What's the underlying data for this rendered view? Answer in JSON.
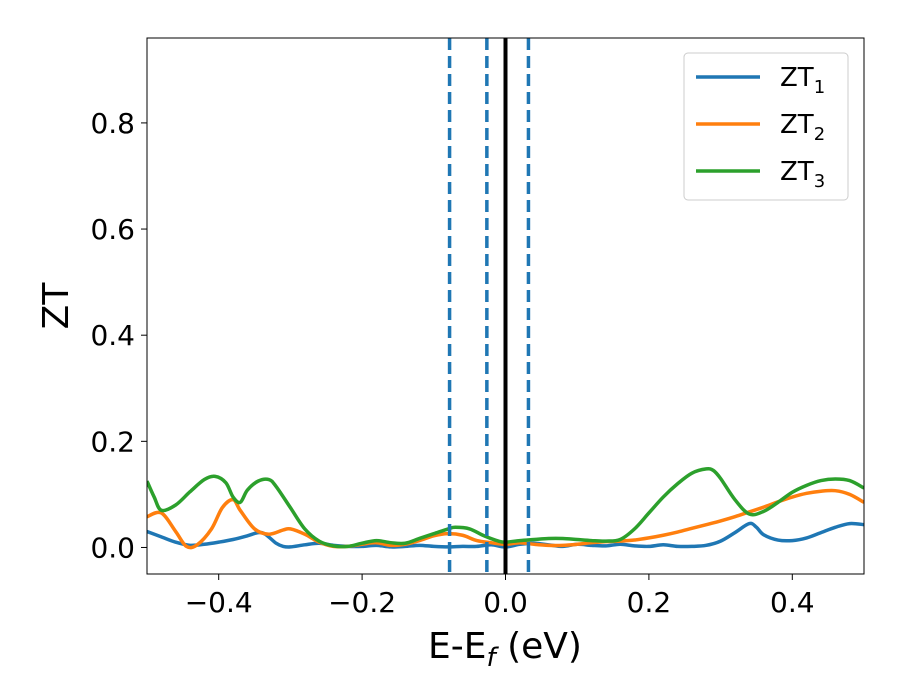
{
  "chart_data": {
    "type": "line",
    "xlabel": {
      "main": "E-E",
      "sub": "f",
      "unit": " (eV)"
    },
    "ylabel": "ZT",
    "xlim": [
      -0.5,
      0.5
    ],
    "ylim": [
      -0.05,
      0.96
    ],
    "x_ticks": [
      -0.4,
      -0.2,
      0.0,
      0.2,
      0.4
    ],
    "x_tick_labels": [
      "−0.4",
      "−0.2",
      "0.0",
      "0.2",
      "0.4"
    ],
    "y_ticks": [
      0.0,
      0.2,
      0.4,
      0.6,
      0.8
    ],
    "y_tick_labels": [
      "0.0",
      "0.2",
      "0.4",
      "0.6",
      "0.8"
    ],
    "grid": false,
    "legend_position": "top-right",
    "reference_lines": {
      "solid": {
        "x": 0.0,
        "color": "#000000"
      },
      "dashed": {
        "x": [
          -0.078,
          -0.026,
          0.032
        ],
        "color": "#1f77b4"
      }
    },
    "series": [
      {
        "name": "ZT",
        "name_sub": "1",
        "color": "#1f77b4",
        "points": [
          [
            -0.5,
            0.03
          ],
          [
            -0.48,
            0.02
          ],
          [
            -0.46,
            0.01
          ],
          [
            -0.44,
            0.004
          ],
          [
            -0.42,
            0.006
          ],
          [
            -0.4,
            0.01
          ],
          [
            -0.38,
            0.015
          ],
          [
            -0.36,
            0.022
          ],
          [
            -0.345,
            0.028
          ],
          [
            -0.335,
            0.025
          ],
          [
            -0.32,
            0.008
          ],
          [
            -0.31,
            0.002
          ],
          [
            -0.3,
            0.001
          ],
          [
            -0.28,
            0.005
          ],
          [
            -0.26,
            0.008
          ],
          [
            -0.24,
            0.004
          ],
          [
            -0.22,
            0.002
          ],
          [
            -0.2,
            0.002
          ],
          [
            -0.18,
            0.004
          ],
          [
            -0.16,
            0.001
          ],
          [
            -0.14,
            0.002
          ],
          [
            -0.12,
            0.004
          ],
          [
            -0.1,
            0.002
          ],
          [
            -0.08,
            0.001
          ],
          [
            -0.06,
            0.002
          ],
          [
            -0.04,
            0.002
          ],
          [
            -0.02,
            0.005
          ],
          [
            0.0,
            0.001
          ],
          [
            0.02,
            0.006
          ],
          [
            0.04,
            0.008
          ],
          [
            0.06,
            0.005
          ],
          [
            0.08,
            0.002
          ],
          [
            0.1,
            0.006
          ],
          [
            0.12,
            0.004
          ],
          [
            0.14,
            0.003
          ],
          [
            0.16,
            0.006
          ],
          [
            0.18,
            0.003
          ],
          [
            0.2,
            0.002
          ],
          [
            0.22,
            0.005
          ],
          [
            0.24,
            0.002
          ],
          [
            0.26,
            0.002
          ],
          [
            0.28,
            0.004
          ],
          [
            0.3,
            0.012
          ],
          [
            0.32,
            0.028
          ],
          [
            0.34,
            0.045
          ],
          [
            0.35,
            0.038
          ],
          [
            0.36,
            0.024
          ],
          [
            0.38,
            0.014
          ],
          [
            0.4,
            0.013
          ],
          [
            0.42,
            0.018
          ],
          [
            0.44,
            0.028
          ],
          [
            0.46,
            0.038
          ],
          [
            0.48,
            0.045
          ],
          [
            0.5,
            0.043
          ]
        ]
      },
      {
        "name": "ZT",
        "name_sub": "2",
        "color": "#ff7f0e",
        "points": [
          [
            -0.5,
            0.058
          ],
          [
            -0.48,
            0.065
          ],
          [
            -0.46,
            0.03
          ],
          [
            -0.445,
            0.002
          ],
          [
            -0.43,
            0.005
          ],
          [
            -0.41,
            0.035
          ],
          [
            -0.395,
            0.075
          ],
          [
            -0.38,
            0.09
          ],
          [
            -0.37,
            0.07
          ],
          [
            -0.35,
            0.035
          ],
          [
            -0.33,
            0.025
          ],
          [
            -0.31,
            0.033
          ],
          [
            -0.3,
            0.035
          ],
          [
            -0.28,
            0.025
          ],
          [
            -0.26,
            0.01
          ],
          [
            -0.24,
            0.002
          ],
          [
            -0.22,
            0.002
          ],
          [
            -0.2,
            0.006
          ],
          [
            -0.18,
            0.009
          ],
          [
            -0.16,
            0.004
          ],
          [
            -0.14,
            0.006
          ],
          [
            -0.12,
            0.013
          ],
          [
            -0.1,
            0.022
          ],
          [
            -0.08,
            0.026
          ],
          [
            -0.06,
            0.023
          ],
          [
            -0.04,
            0.013
          ],
          [
            -0.02,
            0.009
          ],
          [
            0.0,
            0.006
          ],
          [
            0.02,
            0.009
          ],
          [
            0.04,
            0.006
          ],
          [
            0.06,
            0.004
          ],
          [
            0.08,
            0.004
          ],
          [
            0.1,
            0.006
          ],
          [
            0.12,
            0.009
          ],
          [
            0.14,
            0.011
          ],
          [
            0.16,
            0.012
          ],
          [
            0.18,
            0.014
          ],
          [
            0.2,
            0.018
          ],
          [
            0.22,
            0.023
          ],
          [
            0.24,
            0.029
          ],
          [
            0.26,
            0.036
          ],
          [
            0.28,
            0.043
          ],
          [
            0.3,
            0.05
          ],
          [
            0.32,
            0.058
          ],
          [
            0.34,
            0.067
          ],
          [
            0.36,
            0.076
          ],
          [
            0.38,
            0.086
          ],
          [
            0.4,
            0.095
          ],
          [
            0.42,
            0.102
          ],
          [
            0.44,
            0.106
          ],
          [
            0.46,
            0.107
          ],
          [
            0.48,
            0.1
          ],
          [
            0.5,
            0.085
          ]
        ]
      },
      {
        "name": "ZT",
        "name_sub": "3",
        "color": "#2ca02c",
        "points": [
          [
            -0.5,
            0.125
          ],
          [
            -0.49,
            0.095
          ],
          [
            -0.48,
            0.07
          ],
          [
            -0.46,
            0.08
          ],
          [
            -0.44,
            0.105
          ],
          [
            -0.42,
            0.128
          ],
          [
            -0.405,
            0.134
          ],
          [
            -0.39,
            0.122
          ],
          [
            -0.38,
            0.095
          ],
          [
            -0.37,
            0.085
          ],
          [
            -0.36,
            0.108
          ],
          [
            -0.345,
            0.125
          ],
          [
            -0.33,
            0.128
          ],
          [
            -0.32,
            0.115
          ],
          [
            -0.3,
            0.075
          ],
          [
            -0.28,
            0.035
          ],
          [
            -0.26,
            0.012
          ],
          [
            -0.24,
            0.003
          ],
          [
            -0.22,
            0.002
          ],
          [
            -0.2,
            0.008
          ],
          [
            -0.18,
            0.013
          ],
          [
            -0.16,
            0.009
          ],
          [
            -0.14,
            0.008
          ],
          [
            -0.12,
            0.017
          ],
          [
            -0.1,
            0.026
          ],
          [
            -0.08,
            0.035
          ],
          [
            -0.07,
            0.038
          ],
          [
            -0.05,
            0.035
          ],
          [
            -0.03,
            0.022
          ],
          [
            -0.01,
            0.012
          ],
          [
            0.0,
            0.01
          ],
          [
            0.02,
            0.013
          ],
          [
            0.04,
            0.015
          ],
          [
            0.06,
            0.017
          ],
          [
            0.08,
            0.017
          ],
          [
            0.1,
            0.015
          ],
          [
            0.12,
            0.013
          ],
          [
            0.14,
            0.012
          ],
          [
            0.16,
            0.015
          ],
          [
            0.18,
            0.035
          ],
          [
            0.2,
            0.065
          ],
          [
            0.22,
            0.095
          ],
          [
            0.24,
            0.12
          ],
          [
            0.26,
            0.14
          ],
          [
            0.28,
            0.148
          ],
          [
            0.29,
            0.145
          ],
          [
            0.3,
            0.13
          ],
          [
            0.32,
            0.09
          ],
          [
            0.34,
            0.063
          ],
          [
            0.36,
            0.068
          ],
          [
            0.38,
            0.085
          ],
          [
            0.4,
            0.104
          ],
          [
            0.42,
            0.117
          ],
          [
            0.44,
            0.126
          ],
          [
            0.46,
            0.129
          ],
          [
            0.48,
            0.126
          ],
          [
            0.5,
            0.112
          ]
        ]
      }
    ]
  }
}
